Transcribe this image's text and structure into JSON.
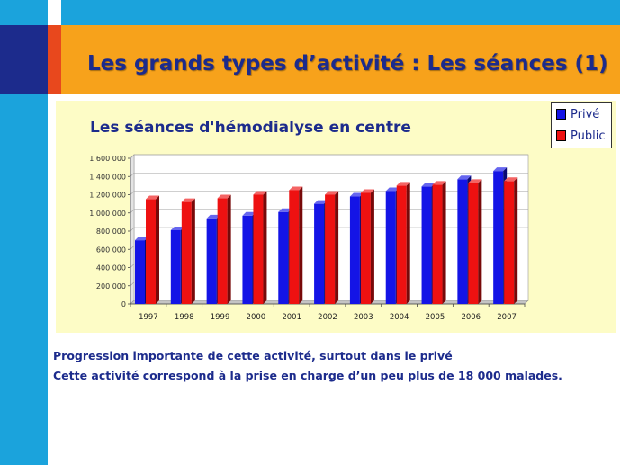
{
  "slide": {
    "title": "Les grands types d’activité : Les séances (1)",
    "notes": [
      "Progression importante de cette activité, surtout dans le privé",
      "Cette activité correspond à la prise en charge d’un peu plus de 18 000 malades."
    ]
  },
  "chart_data": {
    "type": "bar",
    "three_d": true,
    "title": "Les séances d'hémodialyse en centre",
    "categories": [
      "1997",
      "1998",
      "1999",
      "2000",
      "2001",
      "2002",
      "2003",
      "2004",
      "2005",
      "2006",
      "2007"
    ],
    "series": [
      {
        "name": "Privé",
        "color": "#1414e6",
        "values": [
          700000,
          810000,
          940000,
          970000,
          1010000,
          1100000,
          1180000,
          1240000,
          1290000,
          1370000,
          1460000
        ]
      },
      {
        "name": "Public",
        "color": "#ee1111",
        "values": [
          1150000,
          1120000,
          1160000,
          1200000,
          1250000,
          1200000,
          1220000,
          1300000,
          1310000,
          1330000,
          1350000
        ]
      }
    ],
    "ylim": [
      0,
      1600000
    ],
    "yticks": [
      0,
      200000,
      400000,
      600000,
      800000,
      1000000,
      1200000,
      1400000,
      1600000
    ],
    "ytick_labels": [
      "0",
      "200 000",
      "400 000",
      "600 000",
      "800 000",
      "1 000 000",
      "1 200 000",
      "1 400 000",
      "1 600 000"
    ],
    "grid": true,
    "legend": "top-right"
  }
}
